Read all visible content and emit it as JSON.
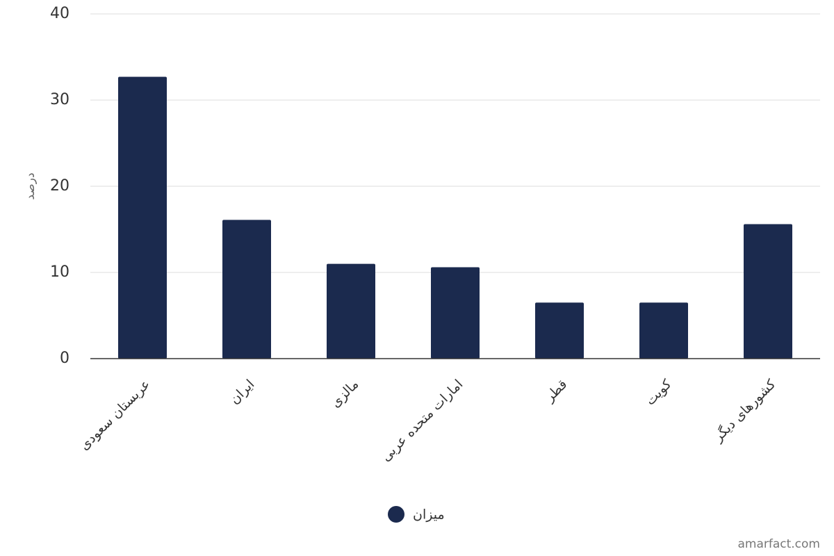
{
  "chart_data": {
    "type": "bar",
    "y_label": "درصد",
    "categories": [
      "عربستان سعودی",
      "ایران",
      "مالزی",
      "امارات متحده عربی",
      "قطر",
      "کویت",
      "کشورهای دیگر"
    ],
    "series": [
      {
        "name": "میزان",
        "color": "#1b2a4e",
        "values": [
          32.7,
          16.1,
          11.0,
          10.6,
          6.5,
          6.5,
          15.6
        ]
      }
    ],
    "ylim": [
      0,
      40
    ],
    "yticks": [
      0,
      10,
      20,
      30,
      40
    ],
    "grid": true,
    "legend": "bottom",
    "credit": "amarfact.com"
  }
}
